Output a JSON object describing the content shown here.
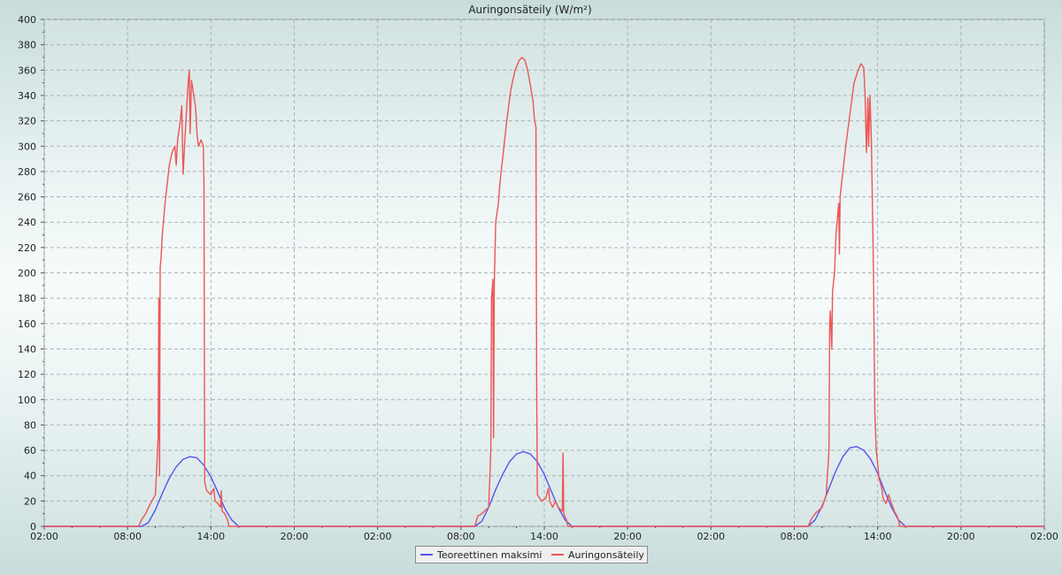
{
  "chart_data": {
    "type": "line",
    "title": "Auringonsäteily (W/m²)",
    "xlabel": "",
    "ylabel": "",
    "ylim": [
      0,
      400
    ],
    "y_ticks": [
      0,
      20,
      40,
      60,
      80,
      100,
      120,
      140,
      160,
      180,
      200,
      220,
      240,
      260,
      280,
      300,
      320,
      340,
      360,
      380,
      400
    ],
    "x_range_hours": [
      0,
      72
    ],
    "x_ticks": [
      {
        "label": "02:00",
        "hour": 0
      },
      {
        "label": "08:00",
        "hour": 6
      },
      {
        "label": "14:00",
        "hour": 12
      },
      {
        "label": "20:00",
        "hour": 18
      },
      {
        "label": "02:00",
        "hour": 24
      },
      {
        "label": "08:00",
        "hour": 30
      },
      {
        "label": "14:00",
        "hour": 36
      },
      {
        "label": "20:00",
        "hour": 42
      },
      {
        "label": "02:00",
        "hour": 48
      },
      {
        "label": "08:00",
        "hour": 54
      },
      {
        "label": "14:00",
        "hour": 60
      },
      {
        "label": "20:00",
        "hour": 66
      },
      {
        "label": "02:00",
        "hour": 72
      }
    ],
    "grid": true,
    "legend_position": "bottom-center",
    "series": [
      {
        "name": "Teoreettinen maksimi",
        "color": "#5555ee",
        "points": [
          [
            0,
            0
          ],
          [
            7.0,
            0
          ],
          [
            7.5,
            3
          ],
          [
            8.0,
            13
          ],
          [
            8.5,
            26
          ],
          [
            9.0,
            38
          ],
          [
            9.5,
            47
          ],
          [
            10.0,
            53
          ],
          [
            10.5,
            55
          ],
          [
            11.0,
            54
          ],
          [
            11.5,
            48
          ],
          [
            12.0,
            39
          ],
          [
            12.5,
            27
          ],
          [
            13.0,
            14
          ],
          [
            13.5,
            5
          ],
          [
            14.0,
            0
          ],
          [
            31.0,
            0
          ],
          [
            31.5,
            4
          ],
          [
            32.0,
            15
          ],
          [
            32.5,
            29
          ],
          [
            33.0,
            41
          ],
          [
            33.5,
            51
          ],
          [
            34.0,
            57
          ],
          [
            34.5,
            59
          ],
          [
            35.0,
            57
          ],
          [
            35.5,
            51
          ],
          [
            36.0,
            41
          ],
          [
            36.5,
            28
          ],
          [
            37.0,
            15
          ],
          [
            37.5,
            5
          ],
          [
            38.0,
            0
          ],
          [
            55.0,
            0
          ],
          [
            55.5,
            5
          ],
          [
            56.0,
            16
          ],
          [
            56.5,
            30
          ],
          [
            57.0,
            44
          ],
          [
            57.5,
            55
          ],
          [
            58.0,
            62
          ],
          [
            58.5,
            63
          ],
          [
            59.0,
            60
          ],
          [
            59.5,
            53
          ],
          [
            60.0,
            42
          ],
          [
            60.5,
            28
          ],
          [
            61.0,
            15
          ],
          [
            61.5,
            5
          ],
          [
            62.0,
            0
          ],
          [
            72,
            0
          ]
        ]
      },
      {
        "name": "Auringonsäteily",
        "color": "#ee5555",
        "points": [
          [
            0,
            0
          ],
          [
            6.8,
            0
          ],
          [
            7.0,
            5
          ],
          [
            7.3,
            10
          ],
          [
            7.6,
            17
          ],
          [
            8.0,
            25
          ],
          [
            8.2,
            70
          ],
          [
            8.25,
            180
          ],
          [
            8.3,
            40
          ],
          [
            8.35,
            205
          ],
          [
            8.4,
            210
          ],
          [
            8.5,
            230
          ],
          [
            8.7,
            255
          ],
          [
            9.0,
            285
          ],
          [
            9.2,
            295
          ],
          [
            9.4,
            300
          ],
          [
            9.5,
            285
          ],
          [
            9.6,
            305
          ],
          [
            9.8,
            320
          ],
          [
            9.9,
            332
          ],
          [
            10.0,
            278
          ],
          [
            10.1,
            300
          ],
          [
            10.3,
            340
          ],
          [
            10.4,
            355
          ],
          [
            10.45,
            360
          ],
          [
            10.5,
            310
          ],
          [
            10.6,
            352
          ],
          [
            10.7,
            345
          ],
          [
            10.9,
            330
          ],
          [
            11.0,
            310
          ],
          [
            11.1,
            300
          ],
          [
            11.3,
            305
          ],
          [
            11.45,
            300
          ],
          [
            11.5,
            270
          ],
          [
            11.55,
            35
          ],
          [
            11.7,
            28
          ],
          [
            12.0,
            25
          ],
          [
            12.2,
            30
          ],
          [
            12.3,
            20
          ],
          [
            12.5,
            18
          ],
          [
            12.7,
            15
          ],
          [
            12.75,
            28
          ],
          [
            12.8,
            12
          ],
          [
            13.0,
            10
          ],
          [
            13.2,
            5
          ],
          [
            13.3,
            0
          ],
          [
            31.0,
            0
          ],
          [
            31.2,
            8
          ],
          [
            31.5,
            10
          ],
          [
            32.0,
            15
          ],
          [
            32.15,
            60
          ],
          [
            32.2,
            180
          ],
          [
            32.3,
            195
          ],
          [
            32.35,
            70
          ],
          [
            32.4,
            190
          ],
          [
            32.5,
            240
          ],
          [
            32.7,
            255
          ],
          [
            32.8,
            270
          ],
          [
            33.0,
            290
          ],
          [
            33.3,
            320
          ],
          [
            33.6,
            345
          ],
          [
            33.9,
            360
          ],
          [
            34.2,
            368
          ],
          [
            34.4,
            370
          ],
          [
            34.6,
            368
          ],
          [
            34.8,
            360
          ],
          [
            35.0,
            348
          ],
          [
            35.2,
            335
          ],
          [
            35.3,
            320
          ],
          [
            35.4,
            315
          ],
          [
            35.45,
            115
          ],
          [
            35.5,
            25
          ],
          [
            35.8,
            20
          ],
          [
            36.1,
            22
          ],
          [
            36.3,
            30
          ],
          [
            36.4,
            20
          ],
          [
            36.6,
            15
          ],
          [
            36.8,
            20
          ],
          [
            37.0,
            15
          ],
          [
            37.3,
            12
          ],
          [
            37.35,
            58
          ],
          [
            37.4,
            10
          ],
          [
            37.6,
            5
          ],
          [
            37.7,
            0
          ],
          [
            55.0,
            0
          ],
          [
            55.2,
            5
          ],
          [
            55.5,
            10
          ],
          [
            56.0,
            15
          ],
          [
            56.3,
            25
          ],
          [
            56.5,
            60
          ],
          [
            56.55,
            160
          ],
          [
            56.6,
            170
          ],
          [
            56.7,
            140
          ],
          [
            56.75,
            185
          ],
          [
            56.9,
            200
          ],
          [
            57.0,
            230
          ],
          [
            57.2,
            255
          ],
          [
            57.25,
            215
          ],
          [
            57.3,
            260
          ],
          [
            57.5,
            280
          ],
          [
            57.7,
            300
          ],
          [
            58.0,
            325
          ],
          [
            58.3,
            350
          ],
          [
            58.6,
            360
          ],
          [
            58.8,
            365
          ],
          [
            59.0,
            362
          ],
          [
            59.1,
            340
          ],
          [
            59.2,
            295
          ],
          [
            59.3,
            338
          ],
          [
            59.35,
            300
          ],
          [
            59.45,
            340
          ],
          [
            59.55,
            305
          ],
          [
            59.7,
            200
          ],
          [
            59.8,
            90
          ],
          [
            59.9,
            60
          ],
          [
            60.0,
            50
          ],
          [
            60.1,
            38
          ],
          [
            60.3,
            30
          ],
          [
            60.4,
            22
          ],
          [
            60.6,
            18
          ],
          [
            60.8,
            25
          ],
          [
            61.0,
            18
          ],
          [
            61.2,
            12
          ],
          [
            61.4,
            8
          ],
          [
            61.5,
            5
          ],
          [
            61.6,
            0
          ],
          [
            72,
            0
          ]
        ]
      }
    ]
  }
}
